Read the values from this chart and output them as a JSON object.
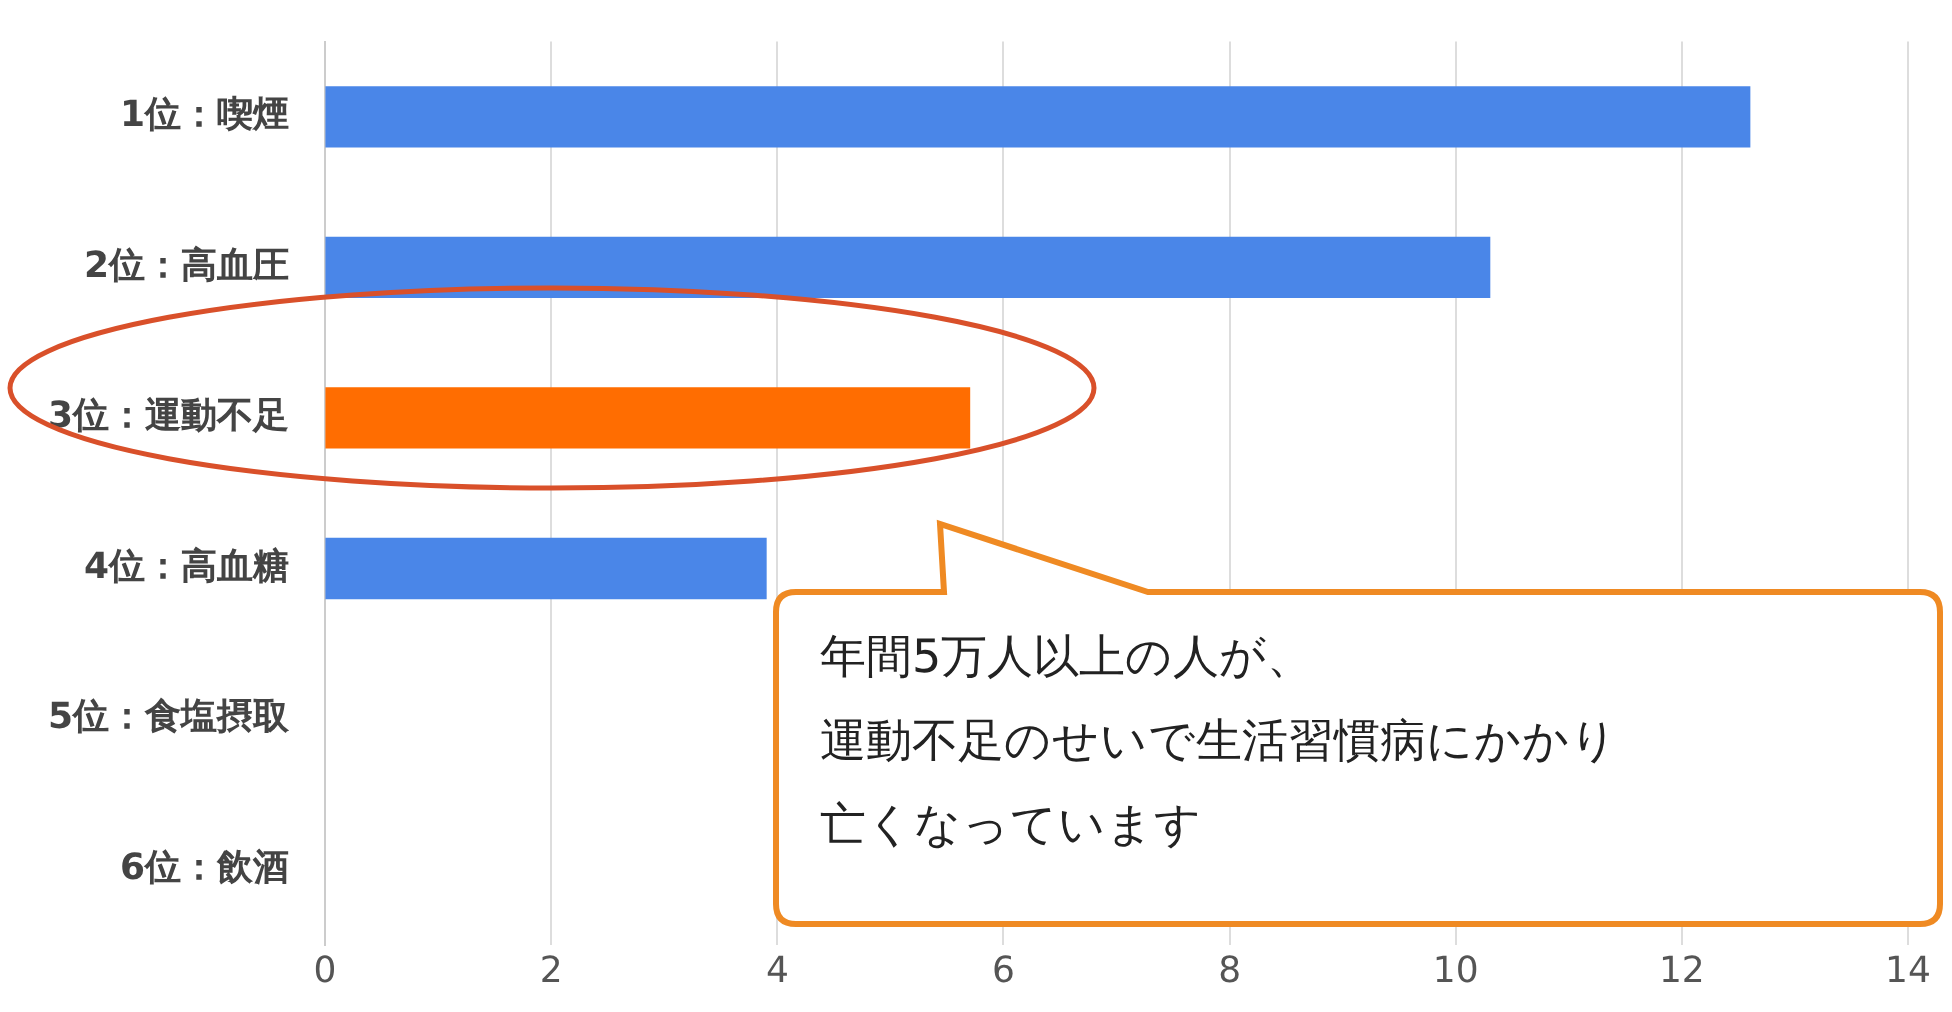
{
  "chart_data": {
    "type": "bar",
    "orientation": "horizontal",
    "categories": [
      "1位：喫煙",
      "2位：高血圧",
      "3位：運動不足",
      "4位：高血糖",
      "5位：食塩摂取",
      "6位：飲酒"
    ],
    "values": [
      12.6,
      10.3,
      5.7,
      3.9,
      null,
      null
    ],
    "colors": [
      "#4a86e8",
      "#4a86e8",
      "#ff6d01",
      "#4a86e8",
      "#4a86e8",
      "#4a86e8"
    ],
    "xlim": [
      0,
      14
    ],
    "xticks": [
      0,
      2,
      4,
      6,
      8,
      10,
      12,
      14
    ],
    "grid": "x",
    "annotations": [
      "年間5万人以上の人が、",
      "運動不足のせいで生活習慣病にかかり",
      "亡くなっています"
    ]
  }
}
